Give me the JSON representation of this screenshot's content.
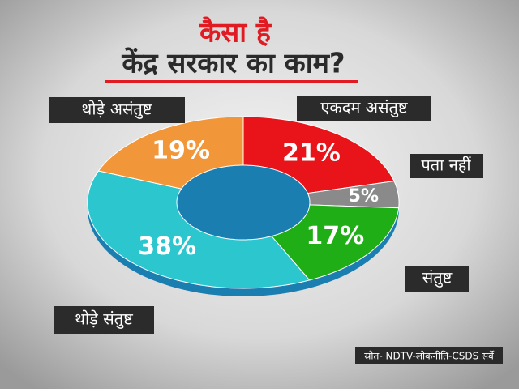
{
  "chart_data": {
    "type": "pie",
    "donut": true,
    "title": "कैसा है",
    "subtitle": "केंद्र सरकार का काम?",
    "categories": [
      "एकदम असंतुष्ट",
      "पता नहीं",
      "संतुष्ट",
      "थोड़े संतुष्ट",
      "थोड़े असंतुष्ट"
    ],
    "values": [
      21,
      5,
      17,
      38,
      19
    ],
    "value_labels": [
      "21%",
      "5%",
      "17%",
      "38%",
      "19%"
    ],
    "colors": [
      "#e8141a",
      "#8a8a8a",
      "#1fae16",
      "#2cc6cf",
      "#f2963a"
    ],
    "source": "स्रोत- NDTV-लोकनीति-CSDS सर्वे"
  }
}
